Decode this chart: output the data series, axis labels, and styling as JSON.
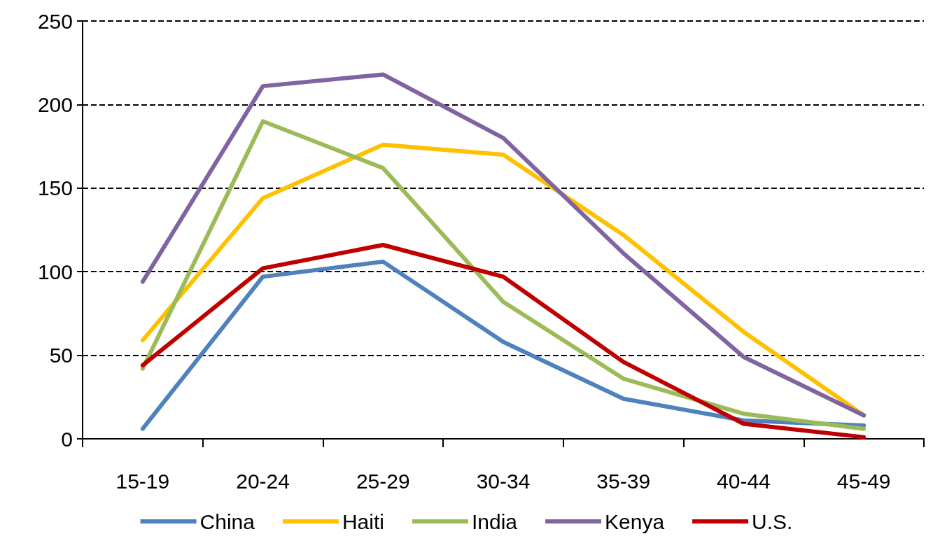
{
  "chart_data": {
    "type": "line",
    "categories": [
      "15-19",
      "20-24",
      "25-29",
      "30-34",
      "35-39",
      "40-44",
      "45-49"
    ],
    "series": [
      {
        "name": "China",
        "color": "#4f81bd",
        "values": [
          6,
          97,
          106,
          58,
          24,
          11,
          8
        ]
      },
      {
        "name": "Haiti",
        "color": "#ffc000",
        "values": [
          59,
          144,
          176,
          170,
          122,
          64,
          14
        ]
      },
      {
        "name": "India",
        "color": "#9bbb59",
        "values": [
          42,
          190,
          162,
          82,
          36,
          15,
          6
        ]
      },
      {
        "name": "Kenya",
        "color": "#8064a2",
        "values": [
          94,
          211,
          218,
          180,
          111,
          49,
          14
        ]
      },
      {
        "name": "U.S.",
        "color": "#c00000",
        "values": [
          44,
          102,
          116,
          97,
          46,
          9,
          1
        ]
      }
    ],
    "ylim": [
      0,
      250
    ],
    "yticks": [
      0,
      50,
      100,
      150,
      200,
      250
    ],
    "grid": "y",
    "legend": "bottom",
    "marker": "none",
    "line_style": "solid"
  }
}
